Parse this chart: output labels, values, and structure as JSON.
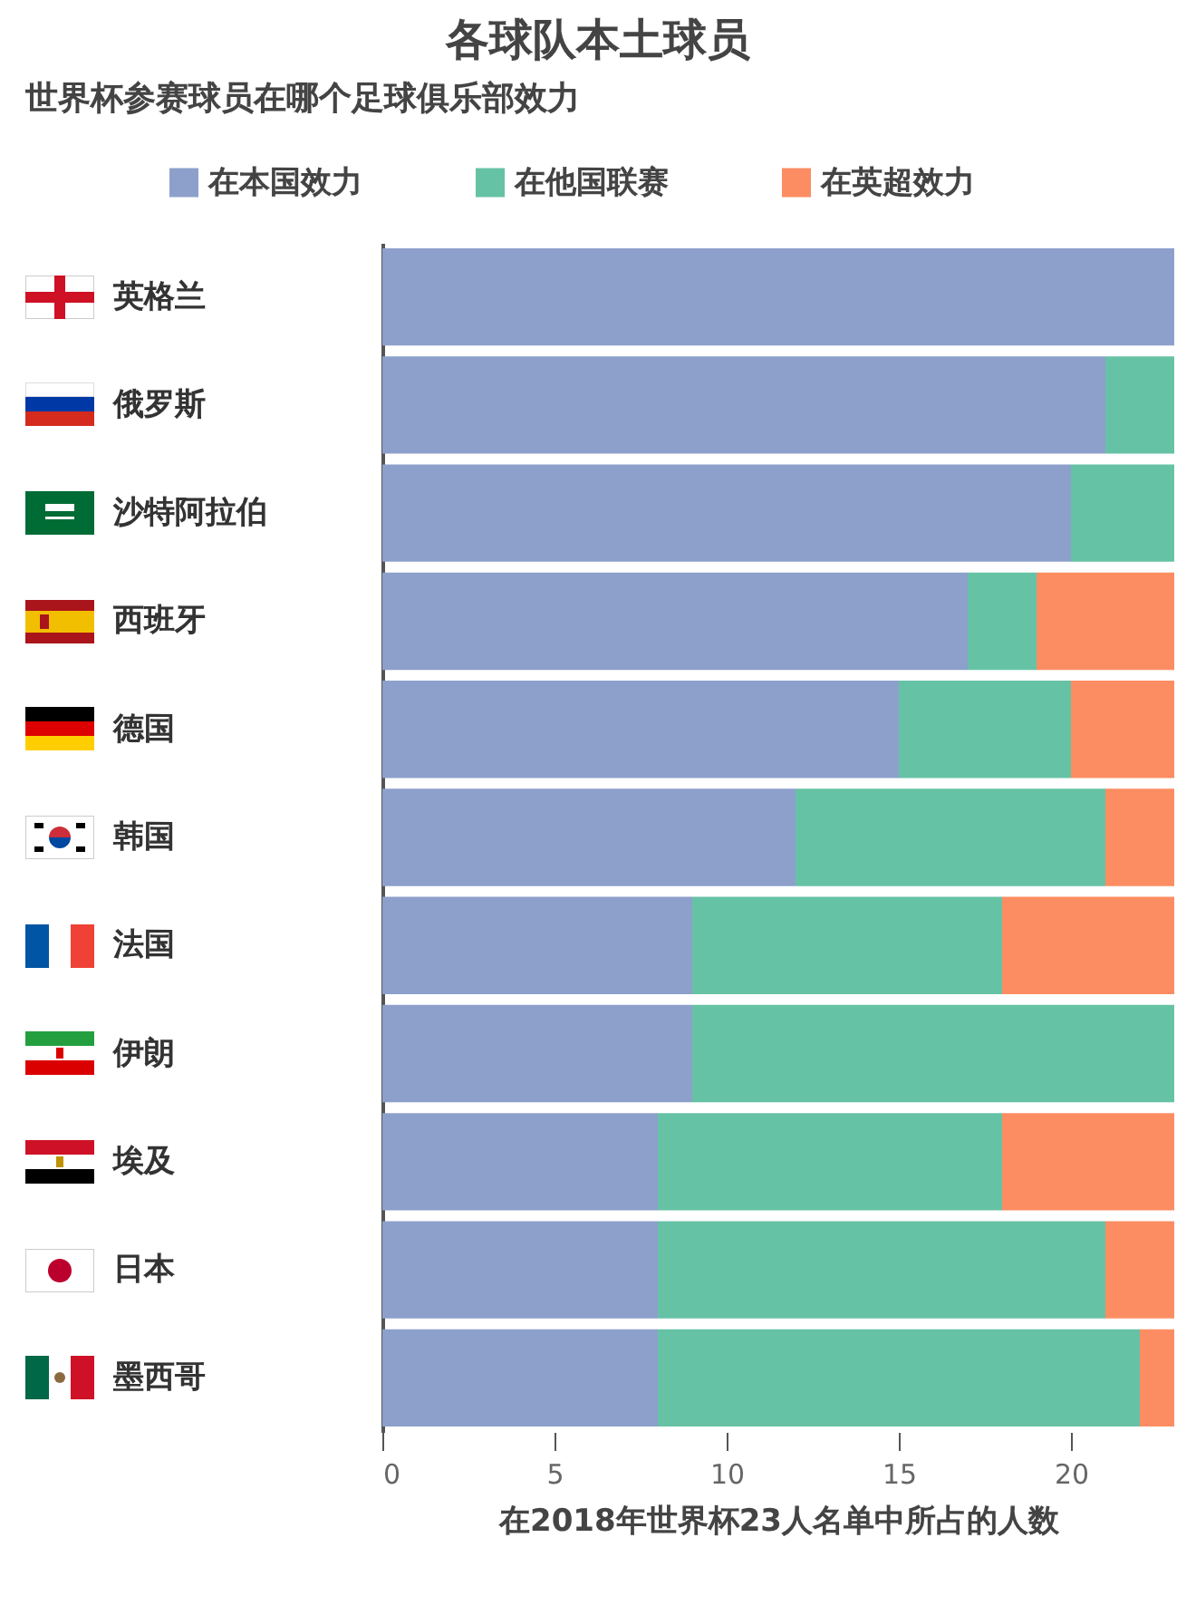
{
  "chart_data": {
    "type": "bar",
    "orientation": "horizontal",
    "stacked": true,
    "title": "各球队本土球员",
    "subtitle": "世界杯参赛球员在哪个足球俱乐部效力",
    "xlabel": "在2018年世界杯23人名单中所占的人数",
    "categories": [
      "英格兰",
      "俄罗斯",
      "沙特阿拉伯",
      "西班牙",
      "德国",
      "韩国",
      "法国",
      "伊朗",
      "埃及",
      "日本",
      "墨西哥"
    ],
    "series": [
      {
        "name": "在本国效力",
        "color": "#8da0cb",
        "values": [
          23,
          21,
          20,
          17,
          15,
          12,
          9,
          9,
          8,
          8,
          8
        ]
      },
      {
        "name": "在他国联赛",
        "color": "#66c2a5",
        "values": [
          0,
          2,
          3,
          2,
          5,
          9,
          9,
          14,
          10,
          13,
          14
        ]
      },
      {
        "name": "在英超效力",
        "color": "#fc8d62",
        "values": [
          0,
          0,
          0,
          4,
          3,
          2,
          5,
          0,
          5,
          2,
          1
        ]
      }
    ],
    "xlim": [
      0,
      23
    ],
    "xticks": [
      0,
      5,
      10,
      15,
      20
    ],
    "legend": "top"
  }
}
